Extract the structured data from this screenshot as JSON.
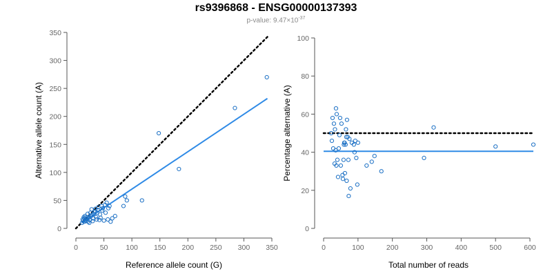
{
  "title": "rs9396868 - ENSG00000137393",
  "pvalue": {
    "label": "p-value: 9.47",
    "times": "×",
    "base": "10",
    "exponent": "-37"
  },
  "colors": {
    "points": "#1a6fc4",
    "fit_line": "#2e8ae6",
    "reference_line": "#000000"
  },
  "chart_data": [
    {
      "type": "scatter",
      "xlabel": "Reference allele count (G)",
      "ylabel": "Alternative allele count (A)",
      "xlim": [
        0,
        350
      ],
      "ylim": [
        0,
        350
      ],
      "xticks": [
        0,
        50,
        100,
        150,
        200,
        250,
        300,
        350
      ],
      "yticks": [
        0,
        50,
        100,
        150,
        200,
        250,
        300,
        350
      ],
      "grid": false,
      "points": [
        [
          11,
          10
        ],
        [
          12,
          16
        ],
        [
          13,
          14
        ],
        [
          14,
          20
        ],
        [
          15,
          12
        ],
        [
          15,
          18
        ],
        [
          16,
          22
        ],
        [
          17,
          15
        ],
        [
          18,
          13
        ],
        [
          19,
          20
        ],
        [
          20,
          17
        ],
        [
          21,
          26
        ],
        [
          22,
          12
        ],
        [
          23,
          19
        ],
        [
          24,
          10
        ],
        [
          25,
          15
        ],
        [
          26,
          28
        ],
        [
          27,
          22
        ],
        [
          28,
          34
        ],
        [
          29,
          24
        ],
        [
          30,
          13
        ],
        [
          31,
          18
        ],
        [
          32,
          26
        ],
        [
          34,
          30
        ],
        [
          35,
          35
        ],
        [
          36,
          20
        ],
        [
          37,
          16
        ],
        [
          38,
          28
        ],
        [
          39,
          33
        ],
        [
          40,
          38
        ],
        [
          42,
          15
        ],
        [
          43,
          25
        ],
        [
          44,
          19
        ],
        [
          46,
          40
        ],
        [
          47,
          32
        ],
        [
          48,
          36
        ],
        [
          50,
          14
        ],
        [
          52,
          42
        ],
        [
          53,
          28
        ],
        [
          55,
          46
        ],
        [
          57,
          16
        ],
        [
          58,
          36
        ],
        [
          60,
          40
        ],
        [
          62,
          12
        ],
        [
          65,
          18
        ],
        [
          70,
          22
        ],
        [
          85,
          40
        ],
        [
          88,
          57
        ],
        [
          91,
          50
        ],
        [
          118,
          50
        ],
        [
          148,
          170
        ],
        [
          184,
          106
        ],
        [
          284,
          215
        ],
        [
          341,
          270
        ]
      ],
      "fit_line": {
        "x": [
          10,
          342
        ],
        "y": [
          10,
          232
        ]
      },
      "reference_line": {
        "x": [
          0,
          342
        ],
        "y": [
          0,
          342
        ]
      }
    },
    {
      "type": "scatter",
      "xlabel": "Total number of reads",
      "ylabel": "Percentage alternative (A)",
      "xlim": [
        0,
        610
      ],
      "ylim": [
        0,
        100
      ],
      "xticks": [
        0,
        100,
        200,
        300,
        400,
        500,
        600
      ],
      "yticks": [
        0,
        20,
        40,
        60,
        80,
        100
      ],
      "grid": false,
      "points": [
        [
          22,
          50
        ],
        [
          24,
          46
        ],
        [
          26,
          58
        ],
        [
          28,
          42
        ],
        [
          30,
          55
        ],
        [
          32,
          34
        ],
        [
          33,
          52
        ],
        [
          35,
          41
        ],
        [
          36,
          63
        ],
        [
          37,
          33
        ],
        [
          38,
          60
        ],
        [
          40,
          36
        ],
        [
          42,
          27
        ],
        [
          44,
          42
        ],
        [
          46,
          49
        ],
        [
          48,
          58
        ],
        [
          50,
          33
        ],
        [
          52,
          55
        ],
        [
          55,
          28
        ],
        [
          56,
          26
        ],
        [
          58,
          36
        ],
        [
          59,
          44
        ],
        [
          60,
          45
        ],
        [
          61,
          45
        ],
        [
          62,
          29
        ],
        [
          64,
          44
        ],
        [
          65,
          52
        ],
        [
          66,
          48
        ],
        [
          67,
          25
        ],
        [
          68,
          57
        ],
        [
          70,
          48
        ],
        [
          72,
          36
        ],
        [
          73,
          17
        ],
        [
          75,
          47
        ],
        [
          78,
          21
        ],
        [
          82,
          45
        ],
        [
          88,
          44
        ],
        [
          90,
          40
        ],
        [
          92,
          46
        ],
        [
          95,
          37
        ],
        [
          98,
          23
        ],
        [
          100,
          45
        ],
        [
          125,
          33
        ],
        [
          140,
          35
        ],
        [
          148,
          38
        ],
        [
          168,
          30
        ],
        [
          292,
          37
        ],
        [
          320,
          53
        ],
        [
          500,
          43
        ],
        [
          610,
          44
        ]
      ],
      "fit_line": {
        "x": [
          0,
          610
        ],
        "y": [
          40.5,
          40.5
        ]
      },
      "reference_line": {
        "x": [
          0,
          610
        ],
        "y": [
          50,
          50
        ]
      }
    }
  ]
}
